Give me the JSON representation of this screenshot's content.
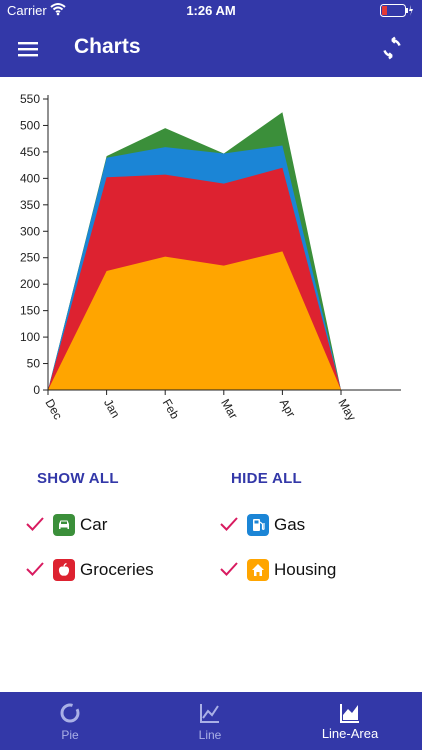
{
  "status_bar": {
    "carrier": "Carrier",
    "time": "1:26 AM"
  },
  "app_bar": {
    "title": "Charts",
    "menu_icon": "hamburger-menu-icon",
    "refresh_icon": "refresh-icon"
  },
  "chart_data": {
    "type": "area",
    "stacked": true,
    "categories": [
      "Dec",
      "Jan",
      "Feb",
      "Mar",
      "Apr",
      "May"
    ],
    "series": [
      {
        "name": "Housing",
        "color": "#ffa500",
        "values": [
          0,
          225,
          252,
          235,
          262,
          0
        ]
      },
      {
        "name": "Groceries",
        "color": "#dd2230",
        "values": [
          0,
          177,
          155,
          155,
          158,
          0
        ]
      },
      {
        "name": "Gas",
        "color": "#1b85d6",
        "values": [
          0,
          37,
          52,
          57,
          42,
          0
        ]
      },
      {
        "name": "Car",
        "color": "#3b8f3a",
        "values": [
          0,
          3,
          36,
          0,
          63,
          0
        ]
      }
    ],
    "ylim": [
      0,
      550
    ],
    "yticks": [
      0,
      50,
      100,
      150,
      200,
      250,
      300,
      350,
      400,
      450,
      500,
      550
    ],
    "grid": false
  },
  "actions": {
    "show_all": "SHOW ALL",
    "hide_all": "HIDE ALL"
  },
  "legend": [
    {
      "label": "Car",
      "icon": "car-icon",
      "color": "#3b8f3a",
      "checked": true
    },
    {
      "label": "Gas",
      "icon": "gas-pump-icon",
      "color": "#1b85d6",
      "checked": true
    },
    {
      "label": "Groceries",
      "icon": "apple-icon",
      "color": "#dd2230",
      "checked": true
    },
    {
      "label": "Housing",
      "icon": "home-icon",
      "color": "#ffa500",
      "checked": true
    }
  ],
  "tabs": [
    {
      "label": "Pie",
      "icon": "pie-chart-icon",
      "active": false
    },
    {
      "label": "Line",
      "icon": "line-chart-icon",
      "active": false
    },
    {
      "label": "Line-Area",
      "icon": "area-chart-icon",
      "active": true
    }
  ]
}
